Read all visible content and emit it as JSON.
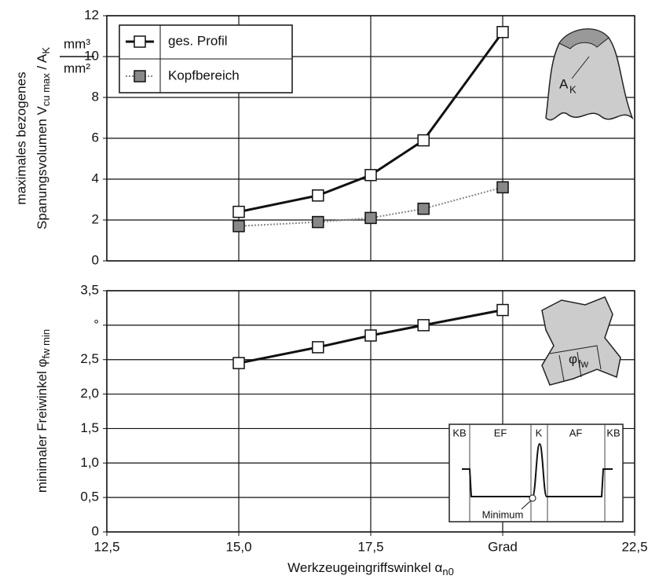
{
  "chart_data": [
    {
      "type": "line",
      "ylabel": {
        "line1": "maximales bezogenes",
        "line2": "Spanungsvolumen V",
        "sub1": "cu max",
        "mid": " / A",
        "sub2": "K"
      },
      "unit": {
        "numerator": "mm³",
        "denominator": "mm²"
      },
      "x": [
        15.0,
        16.5,
        17.5,
        18.5,
        20.0
      ],
      "series": [
        {
          "name": "ges. Profil",
          "color": "#111111",
          "values": [
            2.4,
            3.2,
            4.2,
            5.9,
            11.2
          ]
        },
        {
          "name": "Kopfbereich",
          "color": "#888888",
          "values": [
            1.7,
            1.9,
            2.1,
            2.55,
            3.6
          ]
        }
      ],
      "xlim": [
        12.5,
        22.5
      ],
      "ylim": [
        0,
        12
      ],
      "yticks": [
        0,
        2,
        4,
        6,
        8,
        10,
        12
      ],
      "grid": true,
      "legend": "top-left",
      "figure_label": {
        "main": "A",
        "sub": "K"
      }
    },
    {
      "type": "line",
      "ylabel": {
        "main": "minimaler Freiwinkel φ",
        "sub": "fw min"
      },
      "xlabel": {
        "main": "Werkzeugeingriffswinkel α",
        "sub": "n0"
      },
      "x": [
        15.0,
        16.5,
        17.5,
        18.5,
        20.0
      ],
      "series": [
        {
          "name": null,
          "color": "#111111",
          "values": [
            2.45,
            2.68,
            2.85,
            3.0,
            3.22
          ]
        }
      ],
      "xlim": [
        12.5,
        22.5
      ],
      "xticks": [
        {
          "value": 12.5,
          "label": "12,5"
        },
        {
          "value": 15.0,
          "label": "15,0"
        },
        {
          "value": 17.5,
          "label": "17,5"
        },
        {
          "value": 20,
          "label": "Grad"
        },
        {
          "value": 22.5,
          "label": "22,5"
        }
      ],
      "ylim": [
        0,
        3.5
      ],
      "yticks": [
        0,
        {
          "value": 0.5,
          "label": "0,5"
        },
        {
          "value": 1.0,
          "label": "1,0"
        },
        {
          "value": 1.5,
          "label": "1,5"
        },
        {
          "value": 2.0,
          "label": "2,0"
        },
        {
          "value": 2.5,
          "label": "2,5"
        },
        {
          "value": 3.0,
          "label": "°"
        },
        {
          "value": 3.5,
          "label": "3,5"
        }
      ],
      "grid": true,
      "figure_label": {
        "main": "φ",
        "sub": "fw"
      },
      "inset": {
        "zones": [
          "KB",
          "EF",
          "K",
          "AF",
          "KB"
        ],
        "note": "Minimum"
      }
    }
  ]
}
